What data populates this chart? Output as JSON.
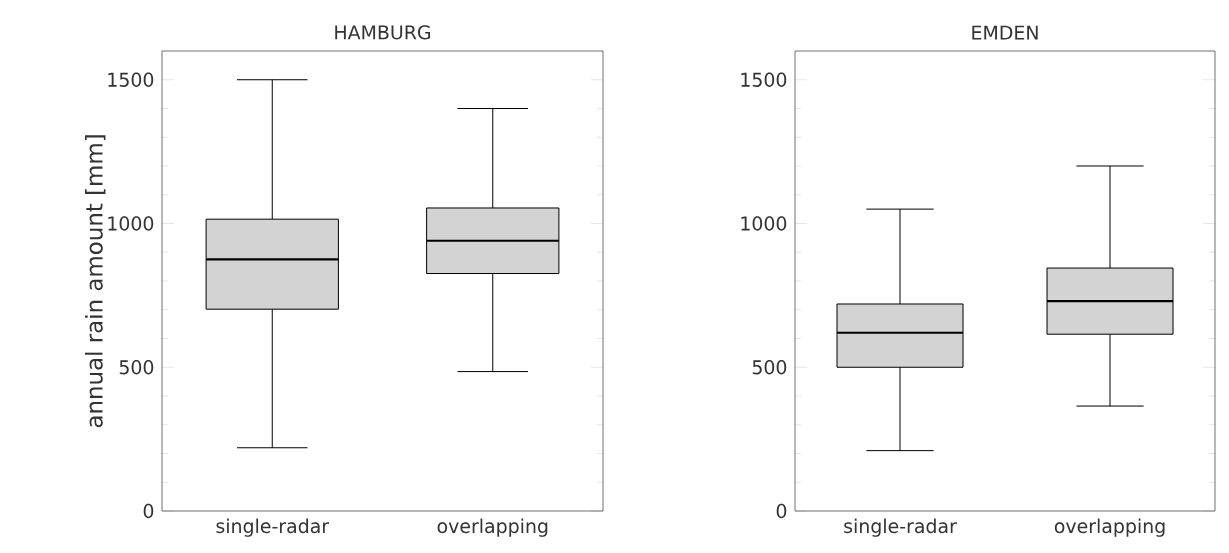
{
  "chart_data": [
    {
      "type": "box",
      "title": "HAMBURG",
      "ylabel": "annual rain amount [mm]",
      "categories": [
        "single-radar",
        "overlapping"
      ],
      "color": "#d3d3d3",
      "ylim": [
        0,
        1600
      ],
      "yticks": [
        0,
        500,
        1000,
        1500
      ],
      "boxes": [
        {
          "low": 220,
          "q1": 702,
          "median": 875,
          "q3": 1015,
          "high": 1500
        },
        {
          "low": 485,
          "q1": 826,
          "median": 940,
          "q3": 1054,
          "high": 1400
        }
      ]
    },
    {
      "type": "box",
      "title": "EMDEN",
      "categories": [
        "single-radar",
        "overlapping"
      ],
      "color": "#d3d3d3",
      "ylim": [
        0,
        1600
      ],
      "yticks": [
        0,
        500,
        1000,
        1500
      ],
      "boxes": [
        {
          "low": 210,
          "q1": 500,
          "median": 620,
          "q3": 720,
          "high": 1050
        },
        {
          "low": 365,
          "q1": 615,
          "median": 730,
          "q3": 845,
          "high": 1200
        }
      ]
    }
  ]
}
